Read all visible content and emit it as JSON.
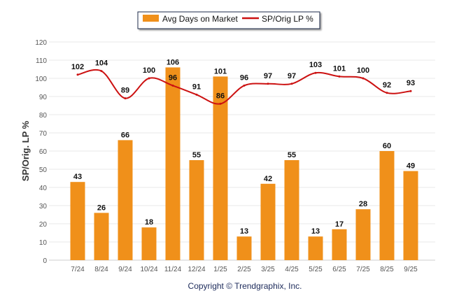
{
  "chart_data": {
    "type": "bar+line",
    "categories": [
      "7/24",
      "8/24",
      "9/24",
      "10/24",
      "11/24",
      "12/24",
      "1/25",
      "2/25",
      "3/25",
      "4/25",
      "5/25",
      "6/25",
      "7/25",
      "8/25",
      "9/25"
    ],
    "series": [
      {
        "name": "Avg Days on Market",
        "type": "bar",
        "color": "#F0901A",
        "values": [
          43,
          26,
          66,
          18,
          106,
          55,
          101,
          13,
          42,
          55,
          13,
          17,
          28,
          60,
          49
        ]
      },
      {
        "name": "SP/Orig LP %",
        "type": "line",
        "color": "#CC1111",
        "values": [
          102,
          104,
          89,
          100,
          96,
          91,
          86,
          96,
          97,
          97,
          103,
          101,
          100,
          92,
          93
        ]
      }
    ],
    "ylabel": "SP/Orig. LP %",
    "xlabel": "",
    "ylim": [
      0,
      120
    ],
    "yticks": [
      0,
      10,
      20,
      30,
      40,
      50,
      60,
      70,
      80,
      90,
      100,
      110,
      120
    ],
    "grid": true,
    "legend": "top-center"
  },
  "footer": {
    "copyright": "Copyright © Trendgraphix, Inc."
  }
}
